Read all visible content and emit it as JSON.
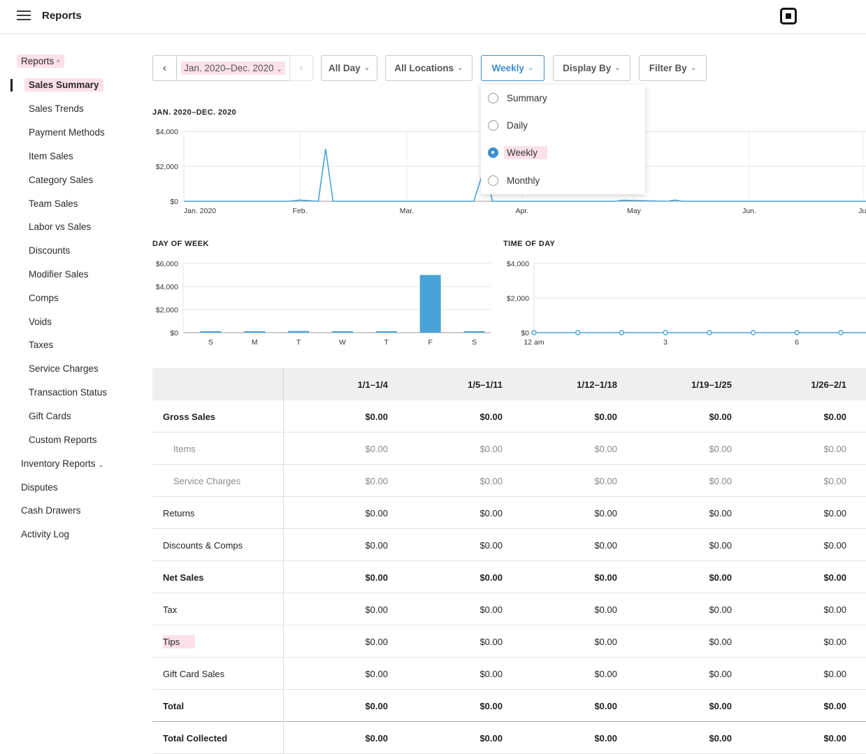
{
  "header": {
    "title": "Reports"
  },
  "sidebar": {
    "reports_label": "Reports",
    "sub_items": [
      "Sales Summary",
      "Sales Trends",
      "Payment Methods",
      "Item Sales",
      "Category Sales",
      "Team Sales",
      "Labor vs Sales",
      "Discounts",
      "Modifier Sales",
      "Comps",
      "Voids",
      "Taxes",
      "Service Charges",
      "Transaction Status",
      "Gift Cards",
      "Custom Reports"
    ],
    "inventory_label": "Inventory Reports",
    "other_items": [
      "Disputes",
      "Cash Drawers",
      "Activity Log"
    ]
  },
  "filters": {
    "prev_icon": "chevron-left",
    "next_icon": "chevron-right",
    "date_range": "Jan. 2020–Dec. 2020",
    "all_day": "All Day",
    "all_locations": "All Locations",
    "interval": "Weekly",
    "display_by": "Display By",
    "filter_by": "Filter By"
  },
  "interval_dropdown": {
    "options": [
      "Summary",
      "Daily",
      "Weekly",
      "Monthly"
    ],
    "selected": "Weekly"
  },
  "colors": {
    "accent": "#3d8fd1",
    "chart_line": "#4aa3d8",
    "highlight": "#fac8d7"
  },
  "chart_data": [
    {
      "type": "line",
      "title": "JAN. 2020–DEC. 2020",
      "x_tick_labels": [
        "Jan. 2020",
        "Feb.",
        "Mar.",
        "Apr.",
        "May",
        "Jun.",
        "Jul"
      ],
      "y_tick_labels": [
        "$4,000",
        "$2,000",
        "$0"
      ],
      "ylim": [
        0,
        4000
      ],
      "grid": true,
      "x": [
        "2020-01-01",
        "2020-01-29",
        "2020-02-01",
        "2020-02-06",
        "2020-02-08",
        "2020-02-10",
        "2020-03-19",
        "2020-03-22",
        "2020-03-24",
        "2020-04-26",
        "2020-04-28",
        "2020-05-10",
        "2020-05-12",
        "2020-05-14",
        "2020-06-30"
      ],
      "values": [
        0,
        0,
        70,
        0,
        3000,
        0,
        0,
        2000,
        0,
        0,
        60,
        0,
        70,
        0,
        0
      ]
    },
    {
      "type": "bar",
      "title": "DAY OF WEEK",
      "categories": [
        "S",
        "M",
        "T",
        "W",
        "T",
        "F",
        "S"
      ],
      "values": [
        60,
        60,
        140,
        60,
        60,
        5000,
        60
      ],
      "y_tick_labels": [
        "$6,000",
        "$4,000",
        "$2,000",
        "$0"
      ],
      "ylim": [
        0,
        6000
      ],
      "grid": true
    },
    {
      "type": "line",
      "title": "TIME OF DAY",
      "x_tick_labels": [
        "12 am",
        "3",
        "6"
      ],
      "x": [
        0,
        1,
        2,
        3,
        4,
        5,
        6,
        7
      ],
      "values": [
        0,
        0,
        0,
        0,
        0,
        0,
        0,
        0
      ],
      "y_tick_labels": [
        "$4,000",
        "$2,000",
        "$0"
      ],
      "ylim": [
        0,
        4000
      ],
      "grid": true
    }
  ],
  "table": {
    "columns": [
      "1/1–1/4",
      "1/5–1/11",
      "1/12–1/18",
      "1/19–1/25",
      "1/26–2/1"
    ],
    "rows": [
      {
        "label": "Gross Sales",
        "style": "bold",
        "values": [
          "$0.00",
          "$0.00",
          "$0.00",
          "$0.00",
          "$0.00"
        ]
      },
      {
        "label": "Items",
        "style": "muted",
        "values": [
          "$0.00",
          "$0.00",
          "$0.00",
          "$0.00",
          "$0.00"
        ]
      },
      {
        "label": "Service Charges",
        "style": "muted",
        "values": [
          "$0.00",
          "$0.00",
          "$0.00",
          "$0.00",
          "$0.00"
        ]
      },
      {
        "label": "Returns",
        "style": "normal",
        "values": [
          "$0.00",
          "$0.00",
          "$0.00",
          "$0.00",
          "$0.00"
        ]
      },
      {
        "label": "Discounts & Comps",
        "style": "normal",
        "values": [
          "$0.00",
          "$0.00",
          "$0.00",
          "$0.00",
          "$0.00"
        ]
      },
      {
        "label": "Net Sales",
        "style": "bold",
        "values": [
          "$0.00",
          "$0.00",
          "$0.00",
          "$0.00",
          "$0.00"
        ]
      },
      {
        "label": "Tax",
        "style": "normal",
        "values": [
          "$0.00",
          "$0.00",
          "$0.00",
          "$0.00",
          "$0.00"
        ]
      },
      {
        "label": "Tips",
        "style": "normal",
        "values": [
          "$0.00",
          "$0.00",
          "$0.00",
          "$0.00",
          "$0.00"
        ]
      },
      {
        "label": "Gift Card Sales",
        "style": "normal",
        "values": [
          "$0.00",
          "$0.00",
          "$0.00",
          "$0.00",
          "$0.00"
        ]
      },
      {
        "label": "Total",
        "style": "bold",
        "values": [
          "$0.00",
          "$0.00",
          "$0.00",
          "$0.00",
          "$0.00"
        ]
      },
      {
        "label": "Total Collected",
        "style": "bold",
        "values": [
          "$0.00",
          "$0.00",
          "$0.00",
          "$0.00",
          "$0.00"
        ]
      }
    ]
  }
}
